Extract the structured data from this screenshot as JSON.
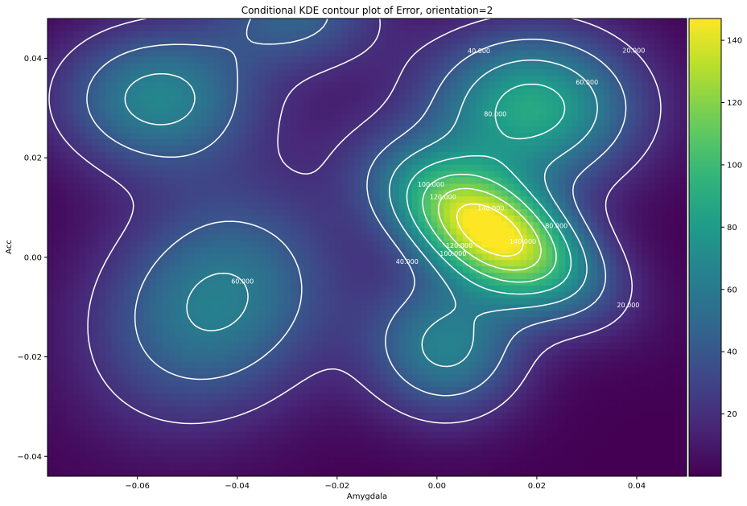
{
  "chart_data": {
    "type": "heatmap",
    "title": "Conditional KDE contour plot of Error, orientation=2",
    "xlabel": "Amygdala",
    "ylabel": "Acc",
    "xlim": [
      -0.078,
      0.05
    ],
    "ylim": [
      -0.044,
      0.048
    ],
    "x_ticks": [
      {
        "value": -0.06,
        "label": "−0.06"
      },
      {
        "value": -0.04,
        "label": "−0.04"
      },
      {
        "value": -0.02,
        "label": "−0.02"
      },
      {
        "value": 0.0,
        "label": "0.00"
      },
      {
        "value": 0.02,
        "label": "0.02"
      },
      {
        "value": 0.04,
        "label": "0.04"
      }
    ],
    "y_ticks": [
      {
        "value": 0.04,
        "label": "0.04"
      },
      {
        "value": 0.02,
        "label": "0.02"
      },
      {
        "value": 0.0,
        "label": "0.00"
      },
      {
        "value": -0.02,
        "label": "−0.02"
      },
      {
        "value": -0.04,
        "label": "−0.04"
      }
    ],
    "colorbar": {
      "colormap": "viridis",
      "range": [
        0,
        147
      ],
      "ticks": [
        20,
        40,
        60,
        80,
        100,
        120,
        140
      ]
    },
    "contour_color": "#ffffff",
    "contour_levels": [
      {
        "level": 20,
        "label": "20.000"
      },
      {
        "level": 40,
        "label": "40.000"
      },
      {
        "level": 60,
        "label": "60.000"
      },
      {
        "level": 80,
        "label": "80.000"
      },
      {
        "level": 100,
        "label": "100.000"
      },
      {
        "level": 120,
        "label": "120.000"
      },
      {
        "level": 140,
        "label": "140.000"
      }
    ],
    "components": [
      {
        "x": 0.011,
        "y": 0.005,
        "sx": 0.014,
        "sy": 0.01,
        "rho": -0.55,
        "amp": 147
      },
      {
        "x": 0.019,
        "y": 0.03,
        "sx": 0.015,
        "sy": 0.011,
        "rho": 0.0,
        "amp": 88
      },
      {
        "x": -0.056,
        "y": 0.032,
        "sx": 0.014,
        "sy": 0.01,
        "rho": 0.0,
        "amp": 66
      },
      {
        "x": -0.044,
        "y": -0.009,
        "sx": 0.017,
        "sy": 0.016,
        "rho": 0.2,
        "amp": 64
      },
      {
        "x": 0.002,
        "y": -0.018,
        "sx": 0.011,
        "sy": 0.01,
        "rho": 0.0,
        "amp": 64
      },
      {
        "x": -0.028,
        "y": 0.049,
        "sx": 0.012,
        "sy": 0.008,
        "rho": 0.0,
        "amp": 44
      }
    ]
  }
}
